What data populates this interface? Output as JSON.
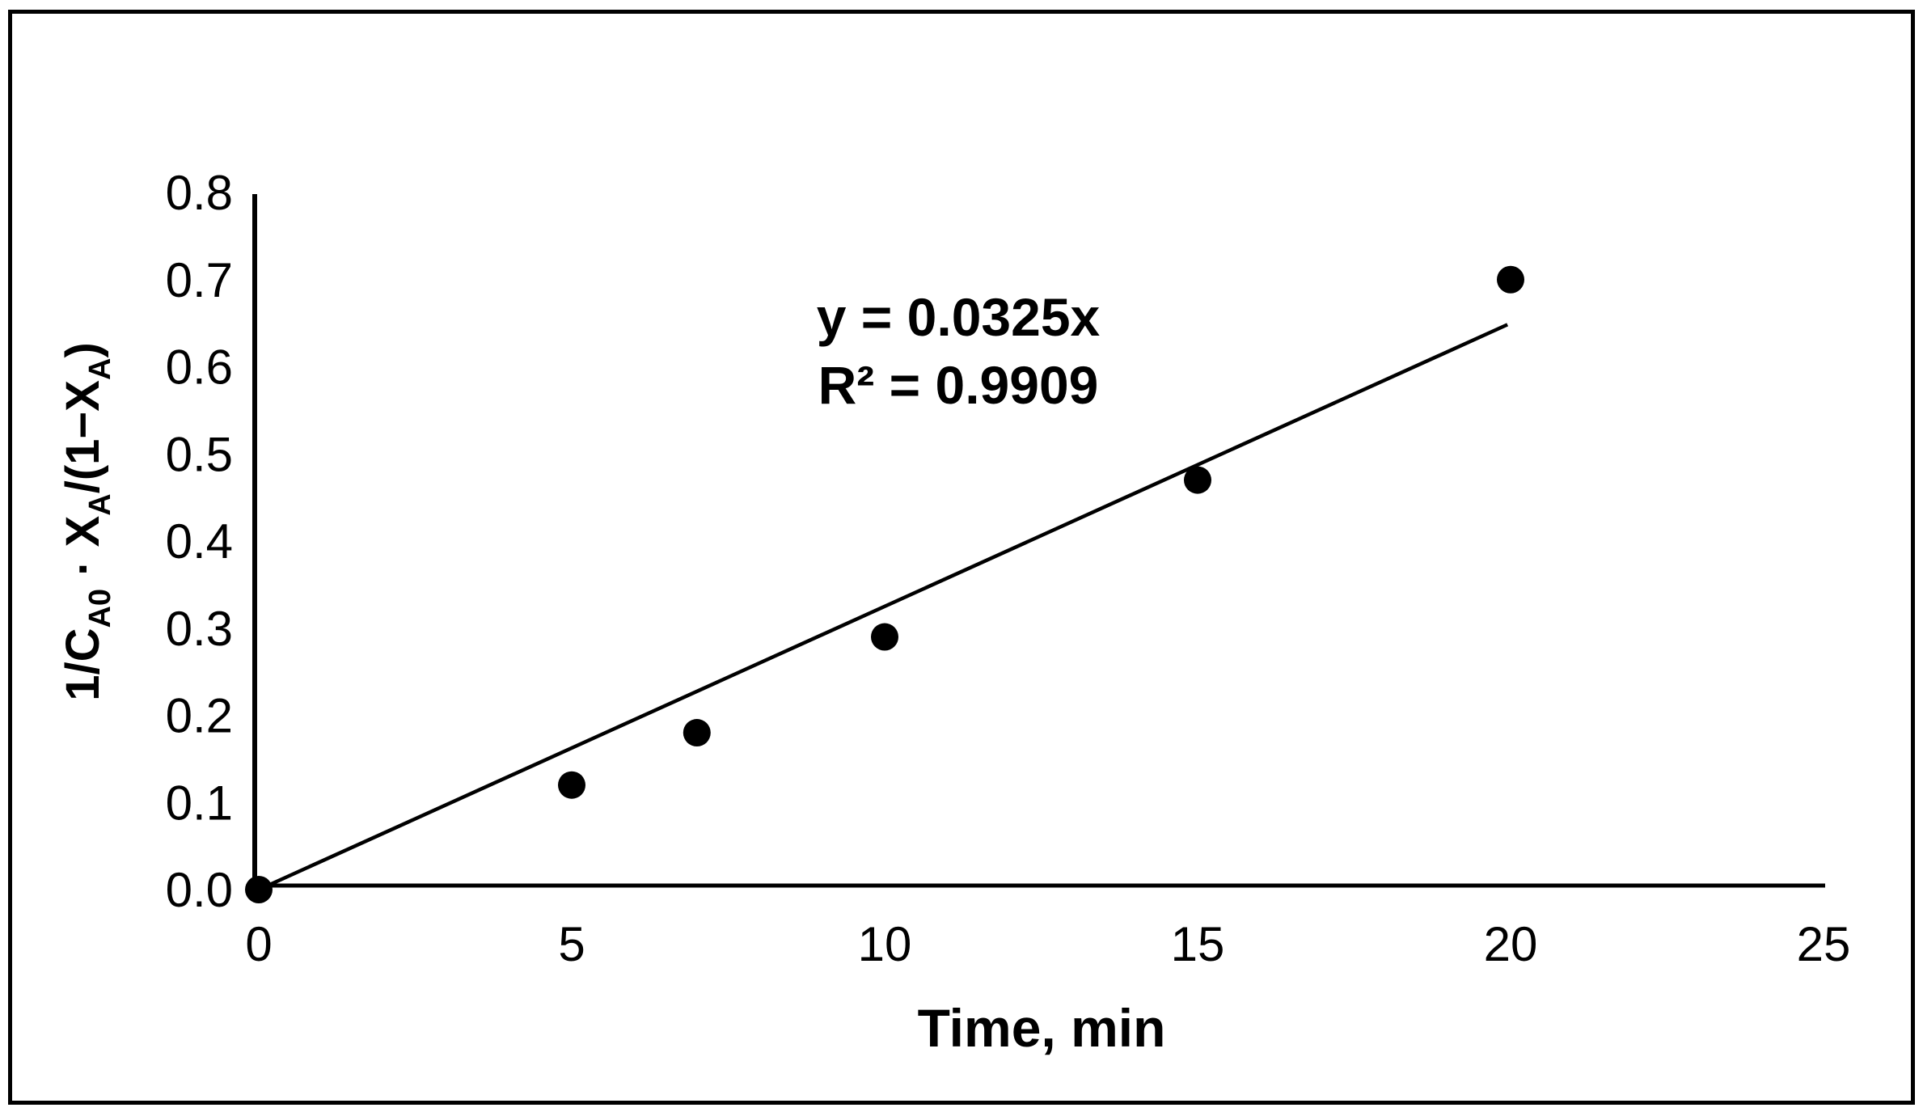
{
  "chart_data": {
    "type": "scatter",
    "title": "",
    "xlabel": "Time, min",
    "ylabel_plain": "1/C_A0 · X_A/(1−X_A)",
    "ylabel_segments": [
      {
        "t": "1/C"
      },
      {
        "sub": "A0"
      },
      {
        "t": " · X"
      },
      {
        "sub": "A"
      },
      {
        "t": "/(1−X"
      },
      {
        "sub": "A"
      },
      {
        "t": ")"
      }
    ],
    "xlim": [
      0,
      25
    ],
    "ylim": [
      0,
      0.8
    ],
    "x_ticks": [
      "0",
      "5",
      "10",
      "15",
      "20",
      "25"
    ],
    "y_ticks": [
      "0.0",
      "0.1",
      "0.2",
      "0.3",
      "0.4",
      "0.5",
      "0.6",
      "0.7",
      "0.8"
    ],
    "points": [
      {
        "x": 0,
        "y": 0.0
      },
      {
        "x": 5,
        "y": 0.12
      },
      {
        "x": 7,
        "y": 0.18
      },
      {
        "x": 10,
        "y": 0.29
      },
      {
        "x": 15,
        "y": 0.47
      },
      {
        "x": 20,
        "y": 0.7
      }
    ],
    "trendline": {
      "slope": 0.0325,
      "intercept": 0,
      "x_start": 0,
      "x_end": 19.95,
      "equation": "y = 0.0325x",
      "r_squared_label": "R² = 0.9909"
    },
    "grid": false,
    "legend": false,
    "colors": {
      "marker": "#000000",
      "trendline": "#000000",
      "axis": "#000000",
      "text": "#000000",
      "background": "#ffffff",
      "border": "#000000"
    }
  }
}
